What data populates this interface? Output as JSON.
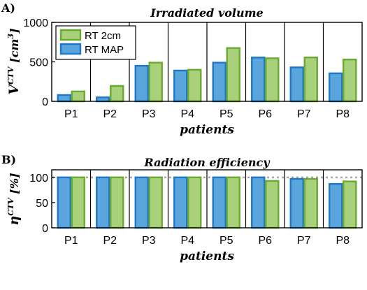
{
  "chart_data": [
    {
      "type": "bar",
      "panel": "A)",
      "title": "Irradiated volume",
      "xlabel": "patients",
      "ylabel_main": "V",
      "ylabel_sup": "CTV",
      "ylabel_unit_pre": " [cm",
      "ylabel_unit_sup": "3",
      "ylabel_unit_post": "]",
      "categories": [
        "P1",
        "P2",
        "P3",
        "P4",
        "P5",
        "P6",
        "P7",
        "P8"
      ],
      "ylim": [
        0,
        1000
      ],
      "yticks": [
        0,
        500,
        1000
      ],
      "series": [
        {
          "name": "RT MAP",
          "color": "#1f77c8",
          "fill": "#5aa5db",
          "values": [
            80,
            50,
            450,
            390,
            490,
            555,
            430,
            355
          ]
        },
        {
          "name": "RT 2cm",
          "color": "#6aaa30",
          "fill": "#a9d07a",
          "values": [
            125,
            195,
            490,
            400,
            675,
            545,
            555,
            530
          ]
        }
      ],
      "legend": {
        "placement": "top-left",
        "order": [
          "RT 2cm",
          "RT MAP"
        ]
      },
      "grid": "vertical separators between patients"
    },
    {
      "type": "bar",
      "panel": "B)",
      "title": "Radiation efficiency",
      "xlabel": "patients",
      "ylabel_main": "η",
      "ylabel_sup": "CTV",
      "ylabel_unit_pre": " [%]",
      "categories": [
        "P1",
        "P2",
        "P3",
        "P4",
        "P5",
        "P6",
        "P7",
        "P8"
      ],
      "ylim": [
        0,
        115
      ],
      "yticks": [
        0,
        50,
        100
      ],
      "reference_line": 100,
      "series": [
        {
          "name": "RT MAP",
          "color": "#1f77c8",
          "fill": "#5aa5db",
          "values": [
            100,
            100,
            100,
            100,
            100,
            100,
            97,
            87
          ]
        },
        {
          "name": "RT 2cm",
          "color": "#6aaa30",
          "fill": "#a9d07a",
          "values": [
            100,
            100,
            100,
            100,
            100,
            93,
            97,
            92
          ]
        }
      ],
      "grid": "vertical separators between patients"
    }
  ]
}
